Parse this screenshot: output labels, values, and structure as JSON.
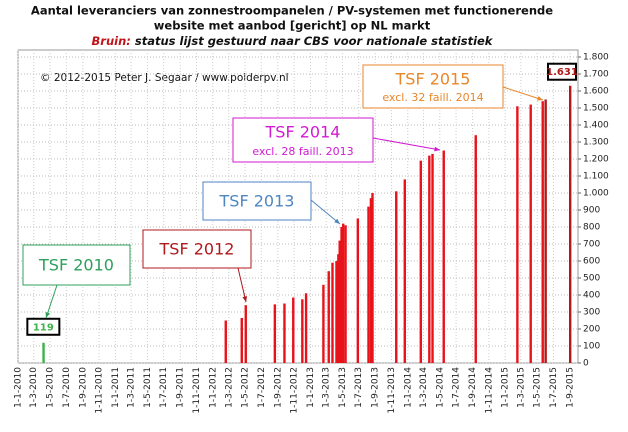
{
  "chart_data": {
    "type": "bar",
    "title": [
      "Aantal leveranciers van zonnestroompanelen  / PV-systemen met functionerende",
      "website met aanbod [gericht] op NL markt"
    ],
    "subtitle": {
      "lead": "Bruin:",
      "text": " status lijst gestuurd naar CBS voor nationale statistiek"
    },
    "copyright": "© 2012-2015 Peter J. Segaar / www.polderpv.nl",
    "x": [
      "2010-04-06",
      "2012-02-18",
      "2012-04-18",
      "2012-05-03",
      "2012-08-20",
      "2012-09-25",
      "2012-10-28",
      "2012-12-01",
      "2012-12-15",
      "2013-02-18",
      "2013-03-10",
      "2013-03-24",
      "2013-04-08",
      "2013-04-15",
      "2013-04-20",
      "2013-04-27",
      "2013-05-03",
      "2013-05-12",
      "2013-06-27",
      "2013-08-06",
      "2013-08-15",
      "2013-08-21",
      "2013-11-18",
      "2013-12-20",
      "2014-02-18",
      "2014-03-22",
      "2014-04-03",
      "2014-05-15",
      "2014-09-12",
      "2015-02-15",
      "2015-04-06",
      "2015-05-21",
      "2015-06-01",
      "2015-09-01"
    ],
    "values": [
      119,
      250,
      265,
      340,
      345,
      350,
      385,
      375,
      410,
      460,
      540,
      590,
      600,
      640,
      720,
      800,
      820,
      810,
      850,
      920,
      970,
      1000,
      1010,
      1080,
      1190,
      1220,
      1230,
      1250,
      1340,
      1510,
      1520,
      1540,
      1550,
      1631
    ],
    "value_labels": [
      "119",
      null,
      null,
      null,
      null,
      null,
      null,
      null,
      null,
      null,
      null,
      null,
      null,
      null,
      null,
      null,
      null,
      null,
      null,
      null,
      null,
      null,
      null,
      null,
      null,
      null,
      null,
      null,
      null,
      null,
      null,
      null,
      null,
      "1.631"
    ],
    "colors": [
      "#3cb34a",
      "#e8121a",
      "#e8121a",
      "#e8121a",
      "#e8121a",
      "#e8121a",
      "#e8121a",
      "#e8121a",
      "#e8121a",
      "#e8121a",
      "#e8121a",
      "#e8121a",
      "#e8121a",
      "#e8121a",
      "#e8121a",
      "#e8121a",
      "#e8121a",
      "#e8121a",
      "#e8121a",
      "#e8121a",
      "#e8121a",
      "#e8121a",
      "#e8121a",
      "#e8121a",
      "#e8121a",
      "#e8121a",
      "#e8121a",
      "#e8121a",
      "#e8121a",
      "#e8121a",
      "#e8121a",
      "#e8121a",
      "#b01a1a",
      "#b01a1a"
    ],
    "annotations": [
      {
        "text": "TSF 2010",
        "color": "#2ca05a"
      },
      {
        "text": "TSF 2012",
        "color": "#b0181c"
      },
      {
        "text": "TSF 2013",
        "color": "#4f86c0"
      },
      {
        "text": "TSF 2014",
        "sub": "excl. 28 faill. 2013",
        "color": "#d21ad2"
      },
      {
        "text": "TSF 2015",
        "sub": "excl. 32 faill. 2014",
        "color": "#e8862a"
      }
    ],
    "xlim": [
      "2010-01-01",
      "2015-10-01"
    ],
    "xticks": [
      {
        "value": "2010-01-01",
        "label": "1-1-2010"
      },
      {
        "value": "2010-03-01",
        "label": "1-3-2010"
      },
      {
        "value": "2010-05-01",
        "label": "1-5-2010"
      },
      {
        "value": "2010-07-01",
        "label": "1-7-2010"
      },
      {
        "value": "2010-09-01",
        "label": "1-9-2010"
      },
      {
        "value": "2010-11-01",
        "label": "1-11-2010"
      },
      {
        "value": "2011-01-01",
        "label": "1-1-2011"
      },
      {
        "value": "2011-03-01",
        "label": "1-3-2011"
      },
      {
        "value": "2011-05-01",
        "label": "1-5-2011"
      },
      {
        "value": "2011-07-01",
        "label": "1-7-2011"
      },
      {
        "value": "2011-09-01",
        "label": "1-9-2011"
      },
      {
        "value": "2011-11-01",
        "label": "1-11-2011"
      },
      {
        "value": "2012-01-01",
        "label": "1-1-2012"
      },
      {
        "value": "2012-03-01",
        "label": "1-3-2012"
      },
      {
        "value": "2012-05-01",
        "label": "1-5-2012"
      },
      {
        "value": "2012-07-01",
        "label": "1-7-2012"
      },
      {
        "value": "2012-09-01",
        "label": "1-9-2012"
      },
      {
        "value": "2012-11-01",
        "label": "1-11-2012"
      },
      {
        "value": "2013-01-01",
        "label": "1-1-2013"
      },
      {
        "value": "2013-03-01",
        "label": "1-3-2013"
      },
      {
        "value": "2013-05-01",
        "label": "1-5-2013"
      },
      {
        "value": "2013-07-01",
        "label": "1-7-2013"
      },
      {
        "value": "2013-09-01",
        "label": "1-9-2013"
      },
      {
        "value": "2013-11-01",
        "label": "1-11-2013"
      },
      {
        "value": "2014-01-01",
        "label": "1-1-2014"
      },
      {
        "value": "2014-03-01",
        "label": "1-3-2014"
      },
      {
        "value": "2014-05-01",
        "label": "1-5-2014"
      },
      {
        "value": "2014-07-01",
        "label": "1-7-2014"
      },
      {
        "value": "2014-09-01",
        "label": "1-9-2014"
      },
      {
        "value": "2014-11-01",
        "label": "1-11-2014"
      },
      {
        "value": "2015-01-01",
        "label": "1-1-2015"
      },
      {
        "value": "2015-03-01",
        "label": "1-3-2015"
      },
      {
        "value": "2015-05-01",
        "label": "1-5-2015"
      },
      {
        "value": "2015-07-01",
        "label": "1-7-2015"
      },
      {
        "value": "2015-09-01",
        "label": "1-9-2015"
      }
    ],
    "ylim": [
      0,
      1800
    ],
    "yticks": [
      0,
      100,
      200,
      300,
      400,
      500,
      600,
      700,
      800,
      900,
      {
        "value": 1000,
        "label": "1.000"
      },
      {
        "value": 1100,
        "label": "1.100"
      },
      {
        "value": 1200,
        "label": "1.200"
      },
      {
        "value": 1300,
        "label": "1.300"
      },
      {
        "value": 1400,
        "label": "1.400"
      },
      {
        "value": 1500,
        "label": "1.500"
      },
      {
        "value": 1600,
        "label": "1.600"
      },
      {
        "value": 1700,
        "label": "1.700"
      },
      {
        "value": 1800,
        "label": "1.800"
      }
    ],
    "grid": true
  }
}
